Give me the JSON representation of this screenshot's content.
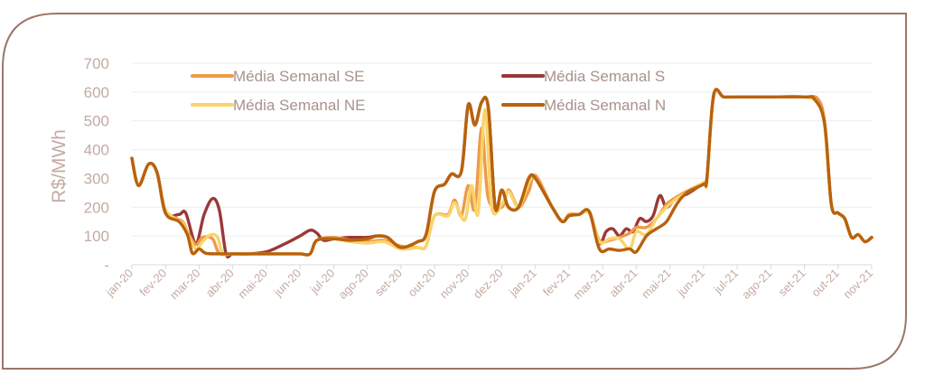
{
  "chart_data": {
    "type": "line",
    "ylabel": "R$/MWh",
    "ylim": [
      0,
      700
    ],
    "y_ticks": [
      "-",
      "100",
      "200",
      "300",
      "400",
      "500",
      "600",
      "700"
    ],
    "x_labels": [
      "jan-20",
      "fev-20",
      "mar-20",
      "abr-20",
      "mai-20",
      "jun-20",
      "jul-20",
      "ago-20",
      "set-20",
      "out-20",
      "nov-20",
      "dez-20",
      "jan-21",
      "fev-21",
      "mar-21",
      "abr-21",
      "mai-21",
      "jun-21",
      "jul-21",
      "ago-21",
      "set-21",
      "out-21",
      "nov-21"
    ],
    "grid": true,
    "legend_position": "top",
    "series": [
      {
        "name": "Média Semanal SE",
        "color": "#ee9a4a",
        "points": [
          [
            0,
            370
          ],
          [
            0.2,
            275
          ],
          [
            0.5,
            350
          ],
          [
            0.75,
            320
          ],
          [
            1,
            190
          ],
          [
            1.5,
            150
          ],
          [
            1.65,
            115
          ],
          [
            1.9,
            70
          ],
          [
            2.1,
            95
          ],
          [
            2.4,
            90
          ],
          [
            2.6,
            40
          ],
          [
            3,
            38
          ],
          [
            3.5,
            38
          ],
          [
            4,
            38
          ],
          [
            4.5,
            38
          ],
          [
            5,
            38
          ],
          [
            5.3,
            38
          ],
          [
            5.5,
            85
          ],
          [
            6,
            95
          ],
          [
            6.5,
            85
          ],
          [
            7,
            80
          ],
          [
            7.5,
            85
          ],
          [
            8,
            65
          ],
          [
            8.5,
            60
          ],
          [
            8.75,
            65
          ],
          [
            9,
            170
          ],
          [
            9.4,
            175
          ],
          [
            9.6,
            225
          ],
          [
            9.8,
            170
          ],
          [
            10,
            275
          ],
          [
            10.2,
            195
          ],
          [
            10.4,
            475
          ],
          [
            10.6,
            230
          ],
          [
            11,
            200
          ],
          [
            11.2,
            260
          ],
          [
            11.5,
            200
          ],
          [
            11.8,
            255
          ],
          [
            12,
            310
          ],
          [
            12.5,
            200
          ],
          [
            12.8,
            150
          ],
          [
            13,
            175
          ],
          [
            13.3,
            175
          ],
          [
            13.6,
            180
          ],
          [
            13.9,
            85
          ],
          [
            14.2,
            85
          ],
          [
            14.5,
            95
          ],
          [
            14.8,
            110
          ],
          [
            15,
            130
          ],
          [
            15.3,
            130
          ],
          [
            15.6,
            160
          ],
          [
            15.9,
            210
          ],
          [
            16.2,
            235
          ],
          [
            16.5,
            255
          ],
          [
            17,
            285
          ],
          [
            17.1,
            300
          ],
          [
            17.3,
            585
          ],
          [
            17.6,
            583
          ],
          [
            18,
            583
          ],
          [
            19,
            583
          ],
          [
            20,
            583
          ],
          [
            20.4,
            575
          ],
          [
            20.6,
            490
          ],
          [
            20.8,
            210
          ],
          [
            21,
            180
          ],
          [
            21.2,
            160
          ],
          [
            21.4,
            95
          ],
          [
            21.6,
            105
          ],
          [
            21.8,
            80
          ],
          [
            22,
            95
          ]
        ]
      },
      {
        "name": "Média Semanal S",
        "color": "#9b3838",
        "points": [
          [
            0,
            370
          ],
          [
            0.2,
            275
          ],
          [
            0.5,
            350
          ],
          [
            0.75,
            320
          ],
          [
            1,
            180
          ],
          [
            1.4,
            175
          ],
          [
            1.6,
            180
          ],
          [
            1.9,
            75
          ],
          [
            2.15,
            175
          ],
          [
            2.4,
            230
          ],
          [
            2.6,
            190
          ],
          [
            2.8,
            38
          ],
          [
            3,
            38
          ],
          [
            3.5,
            38
          ],
          [
            4,
            45
          ],
          [
            4.5,
            70
          ],
          [
            5,
            100
          ],
          [
            5.3,
            120
          ],
          [
            5.5,
            110
          ],
          [
            5.7,
            85
          ],
          [
            6,
            90
          ],
          [
            6.5,
            95
          ],
          [
            7,
            95
          ],
          [
            7.3,
            100
          ],
          [
            7.6,
            95
          ],
          [
            8,
            60
          ],
          [
            8.5,
            80
          ],
          [
            8.75,
            105
          ],
          [
            9,
            255
          ],
          [
            9.3,
            280
          ],
          [
            9.5,
            315
          ],
          [
            9.8,
            325
          ],
          [
            10,
            555
          ],
          [
            10.2,
            485
          ],
          [
            10.4,
            565
          ],
          [
            10.6,
            545
          ],
          [
            10.8,
            200
          ],
          [
            11,
            260
          ],
          [
            11.2,
            200
          ],
          [
            11.5,
            200
          ],
          [
            11.8,
            300
          ],
          [
            12,
            300
          ],
          [
            12.5,
            200
          ],
          [
            12.8,
            150
          ],
          [
            13,
            170
          ],
          [
            13.3,
            175
          ],
          [
            13.6,
            185
          ],
          [
            13.9,
            75
          ],
          [
            14.1,
            115
          ],
          [
            14.3,
            125
          ],
          [
            14.5,
            100
          ],
          [
            14.7,
            125
          ],
          [
            14.9,
            115
          ],
          [
            15.1,
            160
          ],
          [
            15.3,
            150
          ],
          [
            15.5,
            170
          ],
          [
            15.7,
            240
          ],
          [
            15.9,
            200
          ],
          [
            16.2,
            235
          ],
          [
            16.5,
            245
          ],
          [
            17,
            285
          ],
          [
            17.1,
            300
          ],
          [
            17.3,
            585
          ],
          [
            17.6,
            583
          ],
          [
            18,
            583
          ],
          [
            19,
            583
          ],
          [
            20,
            583
          ],
          [
            20.4,
            575
          ],
          [
            20.6,
            490
          ],
          [
            20.8,
            210
          ],
          [
            21,
            180
          ],
          [
            21.2,
            160
          ],
          [
            21.4,
            95
          ],
          [
            21.6,
            105
          ],
          [
            21.8,
            80
          ],
          [
            22,
            95
          ]
        ]
      },
      {
        "name": "Média Semanal NE",
        "color": "#fad46a",
        "points": [
          [
            0,
            370
          ],
          [
            0.2,
            275
          ],
          [
            0.5,
            350
          ],
          [
            0.75,
            320
          ],
          [
            1,
            190
          ],
          [
            1.5,
            145
          ],
          [
            1.7,
            95
          ],
          [
            1.9,
            55
          ],
          [
            2.1,
            80
          ],
          [
            2.35,
            105
          ],
          [
            2.55,
            95
          ],
          [
            2.7,
            40
          ],
          [
            3,
            38
          ],
          [
            3.5,
            38
          ],
          [
            4,
            38
          ],
          [
            4.5,
            38
          ],
          [
            5,
            38
          ],
          [
            5.3,
            38
          ],
          [
            5.5,
            85
          ],
          [
            6,
            90
          ],
          [
            6.5,
            80
          ],
          [
            7,
            75
          ],
          [
            7.5,
            80
          ],
          [
            8,
            55
          ],
          [
            8.5,
            60
          ],
          [
            8.75,
            65
          ],
          [
            9,
            170
          ],
          [
            9.4,
            170
          ],
          [
            9.6,
            215
          ],
          [
            9.9,
            155
          ],
          [
            10.1,
            275
          ],
          [
            10.3,
            180
          ],
          [
            10.5,
            540
          ],
          [
            10.7,
            200
          ],
          [
            11,
            210
          ],
          [
            11.2,
            255
          ],
          [
            11.5,
            200
          ],
          [
            11.8,
            285
          ],
          [
            12,
            300
          ],
          [
            12.5,
            200
          ],
          [
            12.8,
            150
          ],
          [
            13,
            170
          ],
          [
            13.3,
            175
          ],
          [
            13.6,
            180
          ],
          [
            13.9,
            80
          ],
          [
            14.2,
            90
          ],
          [
            14.5,
            90
          ],
          [
            14.8,
            55
          ],
          [
            15,
            115
          ],
          [
            15.3,
            105
          ],
          [
            15.6,
            160
          ],
          [
            15.9,
            200
          ],
          [
            16.2,
            230
          ],
          [
            16.5,
            250
          ],
          [
            17,
            285
          ],
          [
            17.1,
            290
          ],
          [
            17.3,
            585
          ],
          [
            17.6,
            583
          ],
          [
            18,
            583
          ],
          [
            19,
            583
          ],
          [
            20,
            583
          ],
          [
            20.4,
            560
          ],
          [
            20.6,
            480
          ],
          [
            20.8,
            210
          ],
          [
            21,
            180
          ],
          [
            21.2,
            160
          ],
          [
            21.4,
            95
          ],
          [
            21.6,
            105
          ],
          [
            21.8,
            80
          ],
          [
            22,
            95
          ]
        ]
      },
      {
        "name": "Média Semanal N",
        "color": "#b8620c",
        "points": [
          [
            0,
            370
          ],
          [
            0.2,
            275
          ],
          [
            0.5,
            350
          ],
          [
            0.75,
            320
          ],
          [
            1,
            180
          ],
          [
            1.4,
            150
          ],
          [
            1.65,
            105
          ],
          [
            1.8,
            40
          ],
          [
            2,
            55
          ],
          [
            2.2,
            40
          ],
          [
            2.6,
            38
          ],
          [
            3,
            38
          ],
          [
            3.5,
            38
          ],
          [
            4,
            38
          ],
          [
            4.5,
            38
          ],
          [
            5,
            38
          ],
          [
            5.3,
            38
          ],
          [
            5.5,
            85
          ],
          [
            6,
            90
          ],
          [
            6.5,
            85
          ],
          [
            7,
            90
          ],
          [
            7.3,
            100
          ],
          [
            7.6,
            95
          ],
          [
            8,
            60
          ],
          [
            8.5,
            80
          ],
          [
            8.75,
            105
          ],
          [
            9,
            255
          ],
          [
            9.3,
            280
          ],
          [
            9.5,
            315
          ],
          [
            9.8,
            325
          ],
          [
            10,
            555
          ],
          [
            10.2,
            485
          ],
          [
            10.4,
            565
          ],
          [
            10.6,
            545
          ],
          [
            10.8,
            200
          ],
          [
            11,
            260
          ],
          [
            11.2,
            200
          ],
          [
            11.5,
            200
          ],
          [
            11.8,
            300
          ],
          [
            12,
            300
          ],
          [
            12.5,
            200
          ],
          [
            12.8,
            150
          ],
          [
            13,
            170
          ],
          [
            13.3,
            175
          ],
          [
            13.6,
            185
          ],
          [
            13.9,
            55
          ],
          [
            14.2,
            55
          ],
          [
            14.5,
            50
          ],
          [
            14.8,
            55
          ],
          [
            15,
            45
          ],
          [
            15.3,
            100
          ],
          [
            15.6,
            125
          ],
          [
            15.9,
            150
          ],
          [
            16.2,
            210
          ],
          [
            16.5,
            250
          ],
          [
            17,
            280
          ],
          [
            17.1,
            300
          ],
          [
            17.3,
            590
          ],
          [
            17.6,
            583
          ],
          [
            18,
            583
          ],
          [
            19,
            583
          ],
          [
            20,
            583
          ],
          [
            20.3,
            575
          ],
          [
            20.6,
            490
          ],
          [
            20.8,
            210
          ],
          [
            21,
            180
          ],
          [
            21.2,
            160
          ],
          [
            21.4,
            95
          ],
          [
            21.6,
            105
          ],
          [
            21.8,
            80
          ],
          [
            22,
            95
          ]
        ]
      }
    ]
  }
}
